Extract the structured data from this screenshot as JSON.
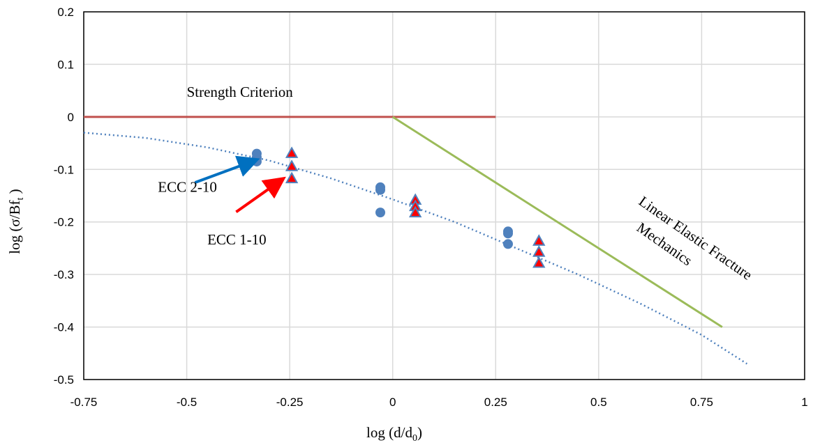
{
  "chart_data": {
    "type": "scatter",
    "title": "",
    "xlabel": "log (d/d",
    "xlabel_sub": "0",
    "xlabel_end": ")",
    "ylabel": "log (σ/Bf",
    "ylabel_sub": "t",
    "ylabel_end": " )",
    "xlim": [
      -0.75,
      1
    ],
    "ylim": [
      -0.5,
      0.2
    ],
    "grid": true,
    "x_ticks": [
      {
        "value": -0.75,
        "label": "-0.75"
      },
      {
        "value": -0.5,
        "label": "-0.5"
      },
      {
        "value": -0.25,
        "label": "-0.25"
      },
      {
        "value": 0,
        "label": "0"
      },
      {
        "value": 0.25,
        "label": "0.25"
      },
      {
        "value": 0.5,
        "label": "0.5"
      },
      {
        "value": 0.75,
        "label": "0.75"
      },
      {
        "value": 1,
        "label": "1"
      }
    ],
    "y_ticks": [
      {
        "value": 0.2,
        "label": "0.2"
      },
      {
        "value": 0.1,
        "label": "0.1"
      },
      {
        "value": 0,
        "label": "0"
      },
      {
        "value": -0.1,
        "label": "-0.1"
      },
      {
        "value": -0.2,
        "label": "-0.2"
      },
      {
        "value": -0.3,
        "label": "-0.3"
      },
      {
        "value": -0.4,
        "label": "-0.4"
      },
      {
        "value": -0.5,
        "label": "-0.5"
      }
    ],
    "lines": [
      {
        "id": "strength-criterion",
        "color": "#c0504d",
        "dash": "",
        "points": [
          [
            -0.75,
            0
          ],
          [
            0.25,
            0
          ]
        ]
      },
      {
        "id": "lefm",
        "color": "#9bbb59",
        "dash": "",
        "points": [
          [
            0,
            0
          ],
          [
            0.8,
            -0.4
          ]
        ]
      },
      {
        "id": "size-effect-curve",
        "color": "#4f81bd",
        "dash": "2 4",
        "points": [
          [
            -0.75,
            -0.03
          ],
          [
            -0.6,
            -0.04
          ],
          [
            -0.45,
            -0.058
          ],
          [
            -0.3,
            -0.083
          ],
          [
            -0.15,
            -0.117
          ],
          [
            0,
            -0.157
          ],
          [
            0.15,
            -0.2
          ],
          [
            0.3,
            -0.25
          ],
          [
            0.45,
            -0.3
          ],
          [
            0.6,
            -0.355
          ],
          [
            0.75,
            -0.415
          ],
          [
            0.86,
            -0.47
          ]
        ]
      }
    ],
    "series": [
      {
        "id": "ecc-2-10",
        "marker": "circle",
        "color": "#4f81bd",
        "x": [
          -0.33,
          -0.33,
          -0.33,
          -0.03,
          -0.03,
          -0.03,
          0.28,
          0.28,
          0.28
        ],
        "y": [
          -0.07,
          -0.077,
          -0.085,
          -0.134,
          -0.139,
          -0.182,
          -0.218,
          -0.222,
          -0.242
        ]
      },
      {
        "id": "ecc-1-10",
        "marker": "triangle",
        "color": "#ff0000",
        "edge": "#4f81bd",
        "x": [
          -0.245,
          -0.245,
          -0.245,
          0.055,
          0.055,
          0.055,
          0.355,
          0.355,
          0.355
        ],
        "y": [
          -0.069,
          -0.094,
          -0.117,
          -0.158,
          -0.17,
          -0.182,
          -0.236,
          -0.257,
          -0.278
        ]
      }
    ],
    "annotations": {
      "strength": {
        "text": "Strength  Criterion",
        "x": -0.5,
        "y": 0.038
      },
      "lefm_line1": {
        "text": "Linear  Elastic Fracture",
        "x": 0.595,
        "y": -0.165,
        "angle": 35
      },
      "lefm_line2": {
        "text": "Mechanics",
        "x": 0.59,
        "y": -0.215,
        "angle": 35
      },
      "ecc2": {
        "text": "ECC 2-10",
        "x": -0.57,
        "y": -0.143
      },
      "ecc1": {
        "text": "ECC 1-10",
        "x": -0.45,
        "y": -0.243
      }
    },
    "arrows": [
      {
        "id": "ecc2-arrow",
        "color": "#0070c0",
        "from": [
          -0.48,
          -0.125
        ],
        "to": [
          -0.335,
          -0.083
        ]
      },
      {
        "id": "ecc1-arrow",
        "color": "#ff0000",
        "from": [
          -0.38,
          -0.181
        ],
        "to": [
          -0.27,
          -0.12
        ]
      }
    ]
  }
}
